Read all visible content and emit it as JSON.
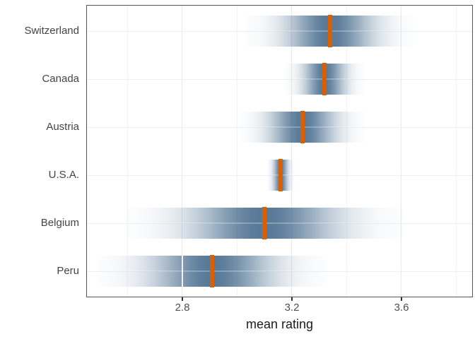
{
  "chart_data": {
    "type": "gradient-interval",
    "title": "",
    "xlabel": "mean rating",
    "ylabel": "",
    "xlim": [
      2.45,
      3.86
    ],
    "grid": true,
    "x_ticks": [
      {
        "value": 2.8,
        "label": "2.8"
      },
      {
        "value": 3.2,
        "label": "3.2"
      },
      {
        "value": 3.6,
        "label": "3.6"
      }
    ],
    "x_minor_gridlines": [
      2.6,
      3.0,
      3.4,
      3.8
    ],
    "series": [
      {
        "label": "Switzerland",
        "mean": 3.34,
        "sd": 0.103
      },
      {
        "label": "Canada",
        "mean": 3.32,
        "sd": 0.049
      },
      {
        "label": "Austria",
        "mean": 3.24,
        "sd": 0.077
      },
      {
        "label": "U.S.A.",
        "mean": 3.16,
        "sd": 0.017
      },
      {
        "label": "Belgium",
        "mean": 3.1,
        "sd": 0.17
      },
      {
        "label": "Peru",
        "mean": 2.91,
        "sd": 0.142,
        "seam_at": 2.8
      }
    ],
    "colors": {
      "band_rgb": "39,82,122",
      "band_peak_alpha": 0.78,
      "mean_line": "#d95f02",
      "grid_major": "#e9e9e9",
      "grid_minor": "#f3f3f3",
      "panel_border": "#555555",
      "axis_text": "#4d4d4d",
      "y_label_text": "#444444",
      "axis_title": "#1a1a1a",
      "tick_mark": "#333333"
    }
  }
}
